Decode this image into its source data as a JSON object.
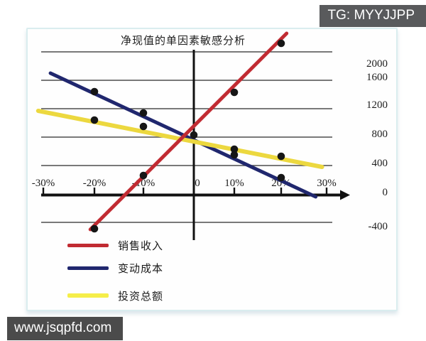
{
  "watermarks": {
    "tg_badge": "TG: MYYJJPP",
    "site_badge": "www.jsqpfd.com"
  },
  "chart_data": {
    "type": "line",
    "title": "净现值的单因素敏感分析",
    "xlabel": "",
    "ylabel": "",
    "x_axis": {
      "labels": [
        "-30%",
        "-20%",
        "-10%",
        "0",
        "10%",
        "20%",
        "30%"
      ],
      "values_pct": [
        -30,
        -20,
        -10,
        0,
        10,
        20,
        30
      ],
      "range_pct": [
        -30,
        30
      ],
      "arrow": "right"
    },
    "y_axis": {
      "labels": [
        "2000",
        "1600",
        "1200",
        "800",
        "400",
        "0",
        "-400"
      ],
      "values": [
        2000,
        1600,
        1200,
        800,
        400,
        0,
        -400
      ],
      "range": [
        -400,
        2000
      ],
      "side": "right"
    },
    "grid": true,
    "gridline_values": [
      2000,
      1600,
      1200,
      800,
      400,
      -400
    ],
    "legend_position": "bottom-left",
    "series": [
      {
        "name": "销售收入",
        "slug": "sales-revenue",
        "color": "#c12b32",
        "points": [
          {
            "x_pct": -20,
            "npv": -490
          },
          {
            "x_pct": -10,
            "npv": 260
          },
          {
            "x_pct": 10,
            "npv": 1430
          },
          {
            "x_pct": 20,
            "npv": 2120
          }
        ],
        "line_extent": {
          "x1_pct": -20.8,
          "v1": -500,
          "x2_pct": 21.2,
          "v2": 2260
        }
      },
      {
        "name": "变动成本",
        "slug": "variable-cost",
        "color": "#20276e",
        "points": [
          {
            "x_pct": -20,
            "npv": 1440
          },
          {
            "x_pct": -10,
            "npv": 1140
          },
          {
            "x_pct": 0,
            "npv": 830
          },
          {
            "x_pct": 10,
            "npv": 550
          },
          {
            "x_pct": 20,
            "npv": 230
          }
        ],
        "line_extent": {
          "x1_pct": -28.6,
          "v1": 1700,
          "x2_pct": 27.6,
          "v2": -40
        }
      },
      {
        "name": "投资总额",
        "slug": "total-investment",
        "color": "#ecd83f",
        "points": [
          {
            "x_pct": -20,
            "npv": 1040
          },
          {
            "x_pct": -10,
            "npv": 950
          },
          {
            "x_pct": 10,
            "npv": 630
          },
          {
            "x_pct": 20,
            "npv": 530
          }
        ],
        "line_extent": {
          "x1_pct": -31,
          "v1": 1170,
          "x2_pct": 29,
          "v2": 380
        }
      }
    ],
    "legend": [
      {
        "label": "销售收入",
        "color": "#c12b32"
      },
      {
        "label": "变动成本",
        "color": "#20276e"
      },
      {
        "label": "投资总额",
        "color": "#f5ee49"
      }
    ]
  }
}
